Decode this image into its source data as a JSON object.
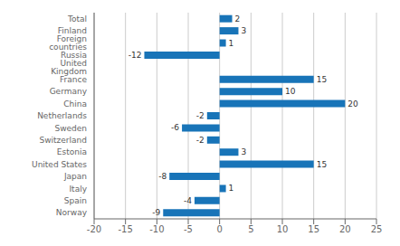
{
  "chart_data": {
    "type": "bar",
    "orientation": "horizontal",
    "categories": [
      "Norway",
      "Spain",
      "Italy",
      "Japan",
      "United States",
      "Estonia",
      "Switzerland",
      "Sweden",
      "Netherlands",
      "China",
      "Germany",
      "France",
      "United Kingdom",
      "Russia",
      "Foreign countries",
      "Finland",
      "Total"
    ],
    "values": [
      -9,
      -4,
      1,
      -8,
      15,
      3,
      -2,
      -6,
      -2,
      20,
      10,
      15,
      0,
      -12,
      1,
      3,
      2
    ],
    "color": "#1874b8",
    "xlim": [
      -20,
      25
    ],
    "xticks": [
      -20,
      -15,
      -10,
      -5,
      0,
      5,
      10,
      15,
      20,
      25
    ],
    "grid": true,
    "data_labels": true
  }
}
